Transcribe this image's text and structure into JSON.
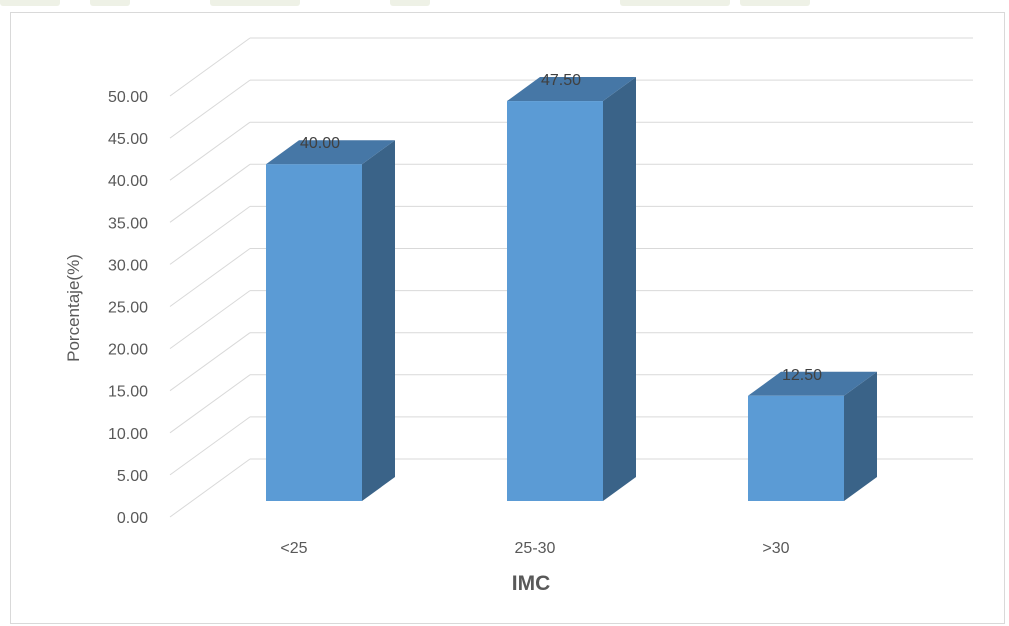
{
  "chart_data": {
    "type": "bar",
    "style": "3d-column",
    "categories": [
      "<25",
      "25-30",
      ">30"
    ],
    "values": [
      40.0,
      47.5,
      12.5
    ],
    "data_labels": [
      "40.00",
      "47.50",
      "12.50"
    ],
    "title": "",
    "xlabel": "IMC",
    "ylabel": "Porcentaje(%)",
    "ylim": [
      0,
      50
    ],
    "yticks": [
      "0.00",
      "5.00",
      "10.00",
      "15.00",
      "20.00",
      "25.00",
      "30.00",
      "35.00",
      "40.00",
      "45.00",
      "50.00"
    ],
    "grid": true,
    "legend": "none",
    "colors": {
      "bar_front": "#5b9bd5",
      "bar_side": "#3a6388",
      "bar_top": "#4677a6",
      "grid": "#d9d9d9"
    }
  }
}
